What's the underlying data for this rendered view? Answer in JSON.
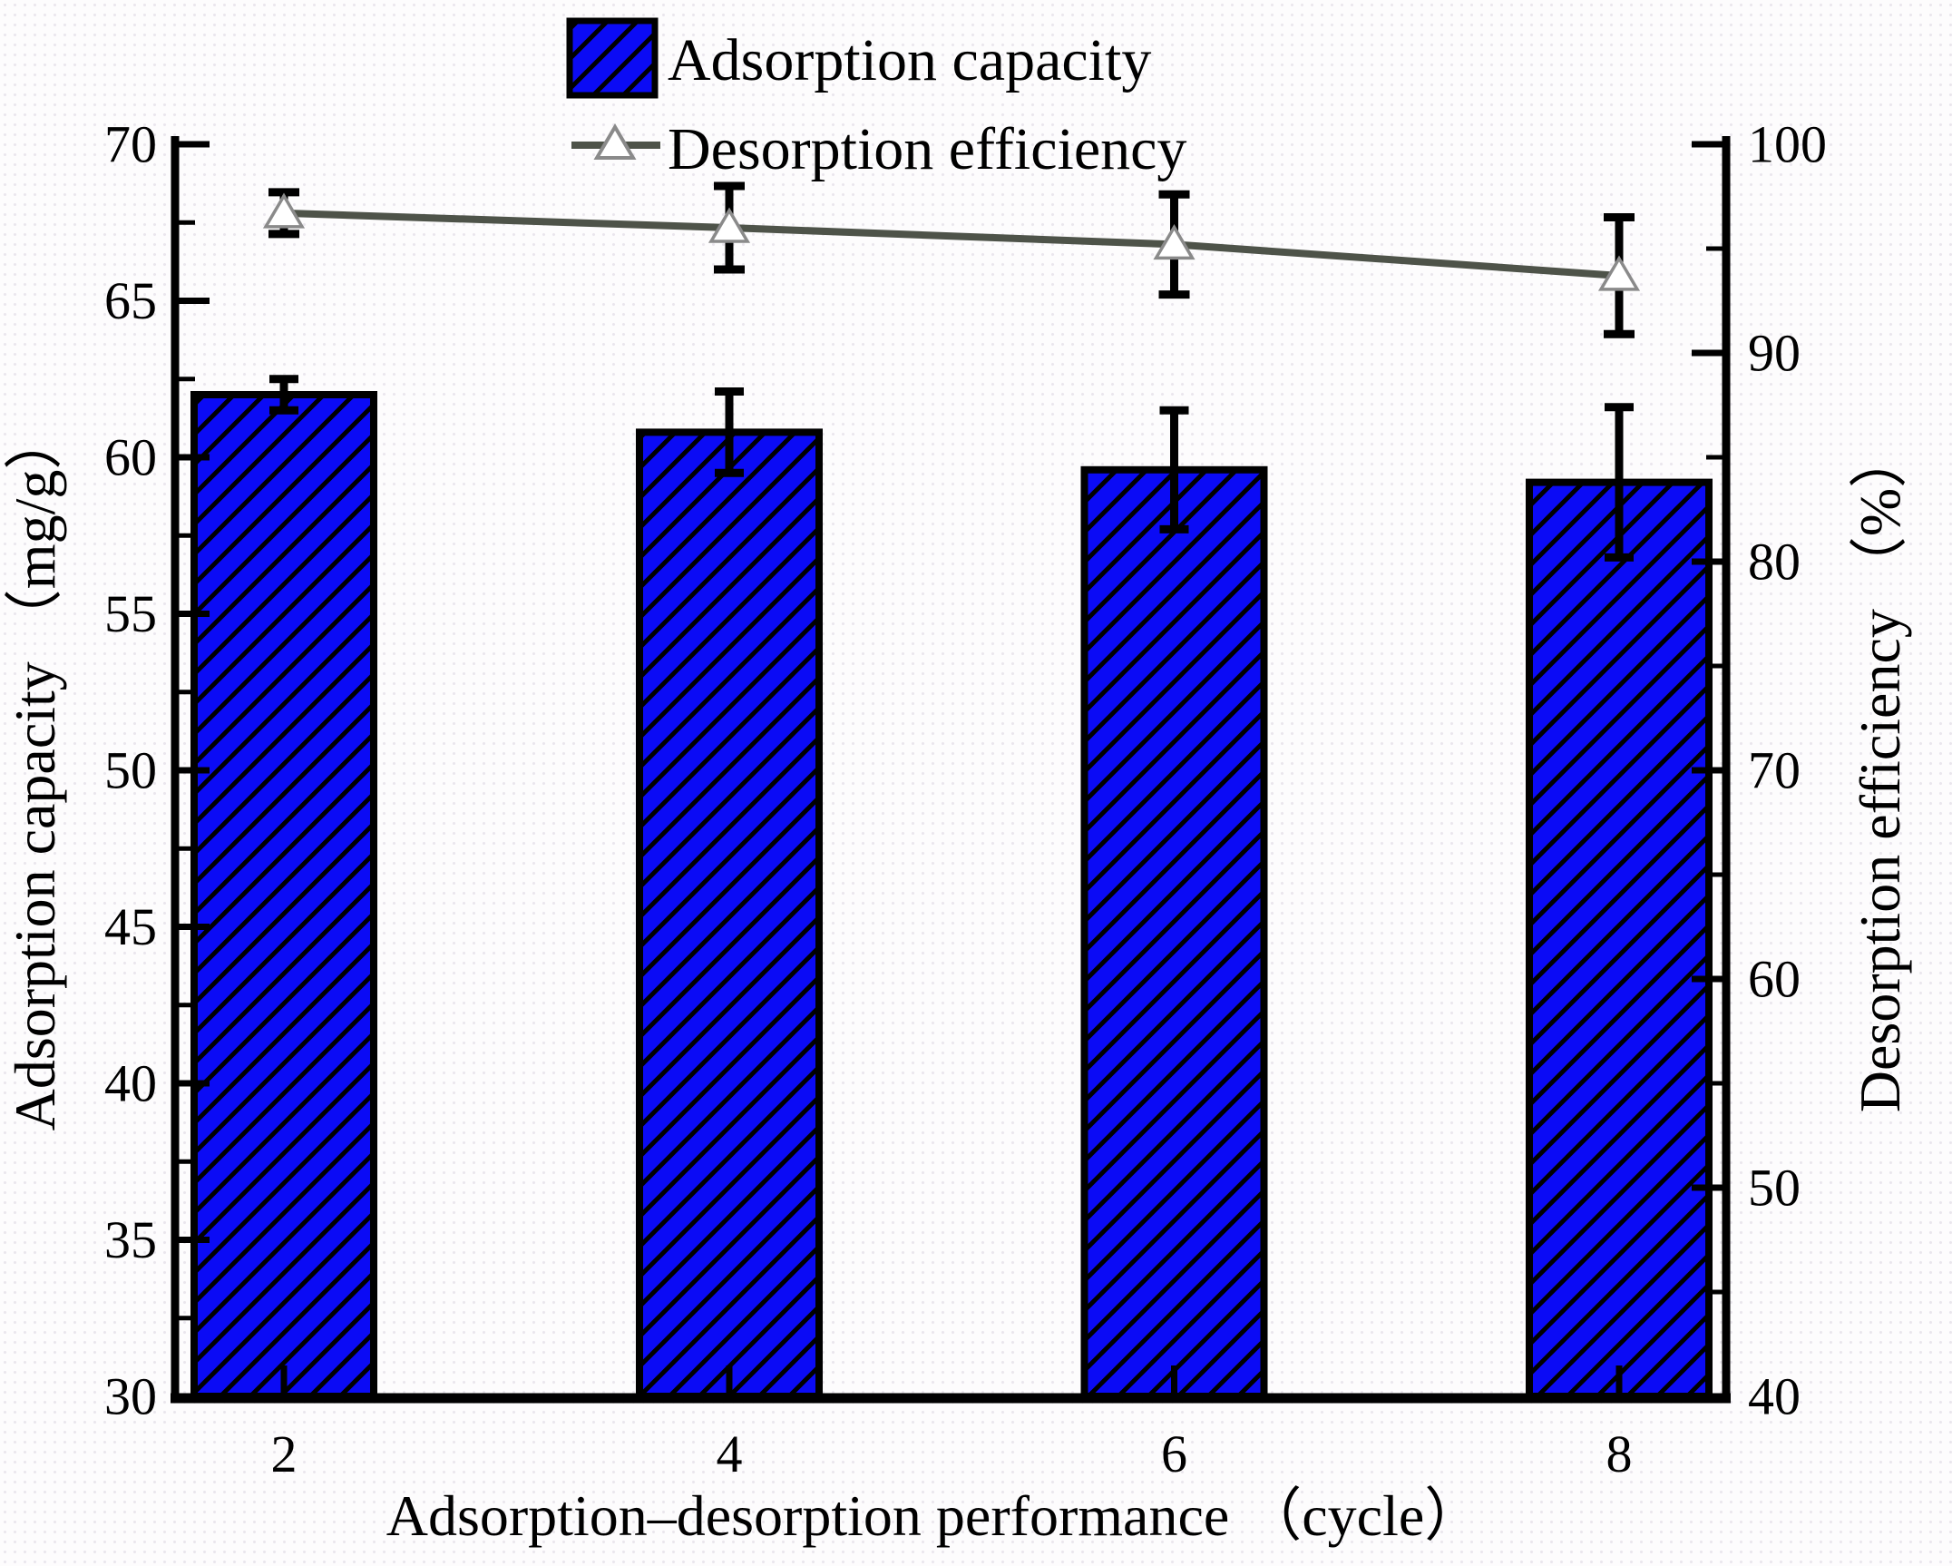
{
  "figure": {
    "colors": {
      "bar_fill": "#0b0bf5",
      "hatch_line": "#000000",
      "line_series": "#4e5349",
      "marker_fill": "#ffffff",
      "marker_stroke": "#8a8a8a",
      "error_bar": "#000000",
      "axis": "#000000",
      "text": "#000000"
    }
  },
  "chart_data": {
    "type": "bar",
    "dual_axis": true,
    "categories": [
      2,
      4,
      6,
      8
    ],
    "series": [
      {
        "name": "Adsorption capacity",
        "type": "bar",
        "axis": "left",
        "unit": "mg/g",
        "values": [
          62.0,
          60.8,
          59.6,
          59.2
        ],
        "error_bars": [
          0.5,
          1.3,
          1.9,
          2.4
        ],
        "style": "blue-diagonal-hatch"
      },
      {
        "name": "Desorption efficiency",
        "type": "line",
        "axis": "right",
        "unit": "%",
        "values": [
          96.7,
          96.0,
          95.2,
          93.7
        ],
        "error_bars": [
          1.0,
          2.0,
          2.4,
          2.8
        ],
        "marker": "open-triangle"
      }
    ],
    "xlabel": "Adsorption–desorption performance （cycle）",
    "x_ticks": [
      "2",
      "4",
      "6",
      "8"
    ],
    "left_axis": {
      "label": "Adsorption capacity （mg/g）",
      "min": 30,
      "max": 70,
      "major_step": 5,
      "minor_step": 2.5,
      "tick_labels": [
        "70",
        "65",
        "60",
        "55",
        "50",
        "45",
        "40",
        "35",
        "30"
      ]
    },
    "right_axis": {
      "label": "Desorption efficiency （%）",
      "min": 40,
      "max": 100,
      "major_step": 10,
      "minor_step": 5,
      "tick_labels": [
        "100",
        "90",
        "80",
        "70",
        "60",
        "50",
        "40"
      ]
    },
    "legend": {
      "position": "top-center",
      "entries": [
        "Adsorption capacity",
        "Desorption efficiency"
      ]
    },
    "grid": false
  }
}
